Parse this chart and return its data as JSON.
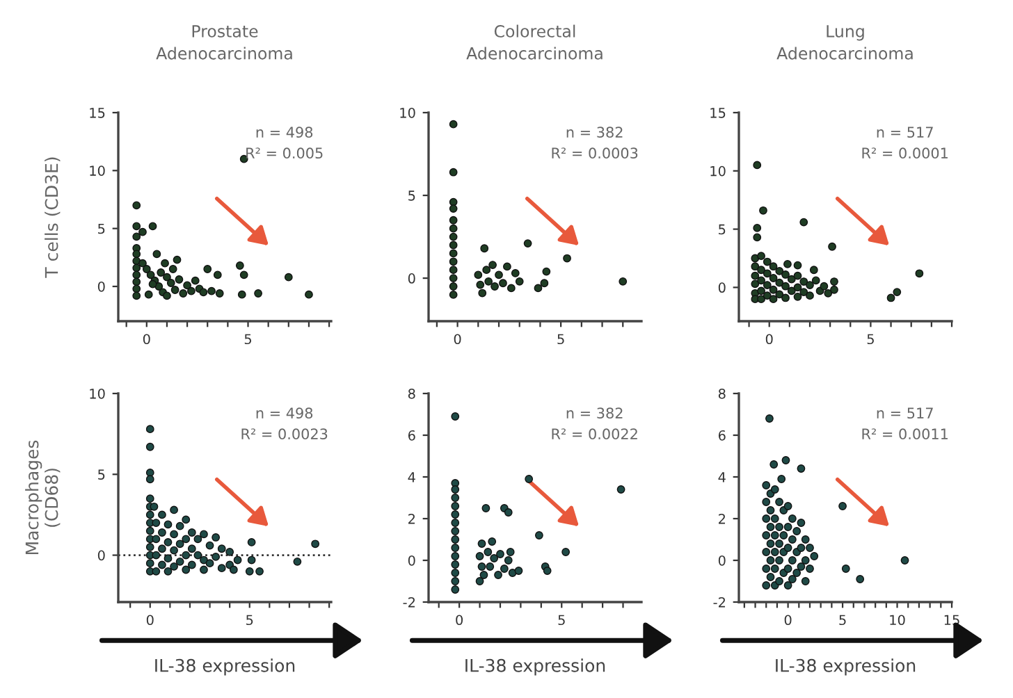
{
  "chart_data": [
    {
      "type": "scatter",
      "title": "Prostate\nAdenocarcinoma",
      "ylabel": "T cells (CD3E)",
      "color": "#1f3d24",
      "marker": "circle",
      "grid": false,
      "x": [
        -0.5,
        -0.5,
        -0.5,
        -0.5,
        -0.5,
        -0.5,
        -0.5,
        -0.5,
        -0.5,
        -0.5,
        -0.5,
        -0.2,
        0.3,
        0.5,
        1.5,
        -0.2,
        0,
        0.2,
        0.4,
        0.6,
        0.8,
        0.1,
        0.3,
        0.7,
        1.0,
        1.2,
        1.4,
        1.6,
        1.8,
        2.0,
        2.2,
        2.4,
        2.6,
        2.8,
        3.0,
        3.2,
        3.5,
        3.6,
        1.0,
        1.3,
        0.9,
        4.6,
        4.8,
        4.7,
        5.5,
        7.0,
        8.0,
        4.8
      ],
      "values": [
        7.0,
        5.2,
        4.3,
        3.3,
        2.8,
        2.2,
        1.6,
        1.0,
        0.4,
        -0.2,
        -0.8,
        4.7,
        5.2,
        2.8,
        2.3,
        2.0,
        1.5,
        1.0,
        0.5,
        0,
        -0.5,
        -0.7,
        0.2,
        1.2,
        0.8,
        0.3,
        -0.3,
        0.6,
        -0.6,
        0.1,
        -0.4,
        0.5,
        -0.2,
        -0.5,
        1.5,
        -0.4,
        1.0,
        -0.6,
        -0.8,
        1.5,
        2.0,
        1.8,
        1.0,
        -0.7,
        -0.6,
        0.8,
        -0.7,
        11.0
      ],
      "xlim": [
        -1.4,
        9.1
      ],
      "ylim": [
        -3,
        15
      ],
      "xticks": [
        {
          "value": -1,
          "label": null
        },
        0,
        {
          "value": 1,
          "label": null
        },
        {
          "value": 2,
          "label": null
        },
        {
          "value": 3,
          "label": null
        },
        {
          "value": 4,
          "label": null
        },
        5,
        {
          "value": 6,
          "label": null
        },
        {
          "value": 7,
          "label": null
        },
        {
          "value": 8,
          "label": null
        },
        {
          "value": 9,
          "label": null
        }
      ],
      "yticks": [
        0,
        5,
        10,
        15
      ],
      "annotations": [
        "n = 498",
        "R² = 0.005"
      ]
    },
    {
      "type": "scatter",
      "title": "Colorectal\nAdenocarcinoma",
      "color": "#1f3d24",
      "marker": "circle",
      "grid": false,
      "x": [
        -0.2,
        -0.2,
        -0.2,
        -0.2,
        -0.2,
        -0.2,
        -0.2,
        -0.2,
        -0.2,
        -0.2,
        -0.2,
        -0.2,
        -0.2,
        -0.2,
        1.3,
        1.0,
        1.1,
        1.2,
        1.4,
        1.5,
        1.7,
        1.8,
        2.0,
        2.2,
        2.4,
        2.6,
        2.8,
        3.0,
        3.4,
        3.9,
        4.2,
        4.3,
        5.3,
        8.0
      ],
      "values": [
        9.3,
        6.4,
        4.6,
        4.2,
        3.5,
        3.0,
        2.5,
        2.0,
        1.5,
        1.0,
        0.5,
        0,
        -0.5,
        -1.0,
        1.8,
        0.2,
        -0.4,
        -0.9,
        0.5,
        -0.2,
        0.8,
        -0.5,
        0.2,
        -0.3,
        0.7,
        -0.6,
        0.3,
        -0.2,
        2.1,
        -0.6,
        -0.3,
        0.4,
        1.2,
        -0.2
      ],
      "xlim": [
        -1.4,
        8.9
      ],
      "ylim": [
        -2.6,
        10
      ],
      "xticks": [
        {
          "value": -1,
          "label": null
        },
        0,
        {
          "value": 1,
          "label": null
        },
        {
          "value": 2,
          "label": null
        },
        {
          "value": 3,
          "label": null
        },
        {
          "value": 4,
          "label": null
        },
        5,
        {
          "value": 6,
          "label": null
        },
        {
          "value": 7,
          "label": null
        },
        {
          "value": 8,
          "label": null
        }
      ],
      "yticks": [
        0,
        5,
        10
      ],
      "annotations": [
        "n = 382",
        "R² = 0.0003"
      ]
    },
    {
      "type": "scatter",
      "title": "Lung\nAdenocarcinoma",
      "color": "#1f3d24",
      "marker": "circle",
      "grid": false,
      "x": [
        -0.7,
        -0.7,
        -0.7,
        -0.7,
        -0.7,
        -0.7,
        -0.4,
        -0.4,
        -0.4,
        -0.4,
        -0.4,
        -0.1,
        -0.1,
        -0.1,
        -0.1,
        0.2,
        0.2,
        0.2,
        0.2,
        0.5,
        0.5,
        0.5,
        0.8,
        0.8,
        0.8,
        1.1,
        1.1,
        1.4,
        1.4,
        1.4,
        1.7,
        1.7,
        2.0,
        2.0,
        2.3,
        2.5,
        2.7,
        2.9,
        -0.6,
        -0.3,
        -0.6,
        -0.6,
        1.7,
        3.1,
        2.2,
        0.9,
        1.4,
        3.2,
        3.2,
        6.0,
        6.3,
        7.4
      ],
      "values": [
        2.5,
        1.8,
        1.0,
        0.3,
        -0.5,
        -1.0,
        2.7,
        1.5,
        0.6,
        -0.3,
        -1.0,
        2.2,
        1.2,
        0.2,
        -0.7,
        1.8,
        0.8,
        -0.2,
        -1.0,
        1.4,
        0.4,
        -0.6,
        1.1,
        0.1,
        -0.9,
        0.7,
        -0.3,
        1.0,
        0.0,
        -0.8,
        0.5,
        -0.4,
        0.2,
        -0.7,
        0.6,
        -0.3,
        0.1,
        -0.5,
        10.5,
        6.6,
        5.1,
        4.3,
        5.6,
        3.5,
        1.5,
        2.0,
        1.9,
        0.5,
        -0.2,
        -0.9,
        -0.4,
        1.2
      ],
      "xlim": [
        -1.5,
        9
      ],
      "ylim": [
        -2.9,
        15
      ],
      "xticks": [
        {
          "value": -1,
          "label": null
        },
        0,
        {
          "value": 1,
          "label": null
        },
        {
          "value": 2,
          "label": null
        },
        {
          "value": 3,
          "label": null
        },
        {
          "value": 4,
          "label": null
        },
        5,
        {
          "value": 6,
          "label": null
        },
        {
          "value": 7,
          "label": null
        },
        {
          "value": 8,
          "label": null
        },
        {
          "value": 9,
          "label": null
        }
      ],
      "yticks": [
        0,
        5,
        10,
        15
      ],
      "annotations": [
        "n = 517",
        "R² = 0.0001"
      ]
    },
    {
      "type": "scatter",
      "ylabel": "Macrophages\n(CD68)",
      "xlabel": "IL-38 expression",
      "color": "#1f4a46",
      "marker": "circle",
      "grid": false,
      "x": [
        0,
        0,
        0,
        0,
        0,
        0,
        0,
        0,
        0,
        0,
        0,
        0,
        0,
        0,
        0.2,
        0.3,
        0.3,
        0.3,
        0.3,
        0.6,
        0.6,
        0.6,
        0.6,
        0.9,
        0.9,
        0.9,
        0.9,
        1.2,
        1.2,
        1.2,
        1.2,
        1.5,
        1.5,
        1.5,
        1.8,
        1.8,
        1.8,
        1.8,
        2.1,
        2.1,
        2.1,
        2.4,
        2.4,
        2.7,
        2.7,
        2.7,
        3.0,
        3.0,
        3.3,
        3.3,
        3.6,
        3.6,
        4.0,
        4.0,
        4.4,
        4.2,
        5.1,
        5.1,
        5.0,
        5.5,
        7.4,
        8.3
      ],
      "values": [
        7.8,
        6.7,
        5.1,
        4.7,
        3.5,
        3.0,
        2.5,
        2.0,
        1.5,
        1.0,
        0.5,
        0,
        -0.5,
        -1.0,
        3.0,
        2.0,
        1.0,
        0,
        -1.0,
        2.5,
        1.4,
        0.4,
        -0.6,
        1.9,
        0.8,
        -0.2,
        -1.0,
        2.8,
        1.3,
        0.3,
        -0.7,
        1.8,
        0.7,
        -0.4,
        2.2,
        1.0,
        0.0,
        -0.9,
        1.4,
        0.4,
        -0.6,
        1.0,
        0.0,
        1.3,
        -0.3,
        -0.9,
        0.6,
        -0.5,
        1.1,
        -0.1,
        0.4,
        -0.8,
        0.2,
        -0.6,
        -0.3,
        -0.9,
        0.8,
        -0.3,
        -1.0,
        -1.0,
        -0.4,
        0.7
      ],
      "xlim": [
        -1.6,
        9.1
      ],
      "ylim": [
        -2.9,
        10
      ],
      "xticks": [
        {
          "value": -1,
          "label": null
        },
        0,
        {
          "value": 1,
          "label": null
        },
        {
          "value": 2,
          "label": null
        },
        {
          "value": 3,
          "label": null
        },
        {
          "value": 4,
          "label": null
        },
        5,
        {
          "value": 6,
          "label": null
        },
        {
          "value": 7,
          "label": null
        },
        {
          "value": 8,
          "label": null
        },
        {
          "value": 9,
          "label": null
        }
      ],
      "yticks": [
        0,
        5,
        10
      ],
      "ref_lines": [
        {
          "axis": "y",
          "value": 0,
          "color": "#333333",
          "line_style": "dotted"
        }
      ],
      "annotations": [
        "n = 498",
        "R² = 0.0023"
      ]
    },
    {
      "type": "scatter",
      "xlabel": "IL-38 expression",
      "color": "#1f4a46",
      "marker": "circle",
      "grid": false,
      "x": [
        -0.2,
        -0.2,
        -0.2,
        -0.2,
        -0.2,
        -0.2,
        -0.2,
        -0.2,
        -0.2,
        -0.2,
        -0.2,
        -0.2,
        -0.2,
        -0.2,
        -0.2,
        1.3,
        2.2,
        2.4,
        3.4,
        3.9,
        4.2,
        4.3,
        5.2,
        7.9,
        1.1,
        1.0,
        1.1,
        1.2,
        1.0,
        1.4,
        1.5,
        1.7,
        1.9,
        2.0,
        2.2,
        2.4,
        2.5,
        2.6,
        2.9,
        1.6
      ],
      "values": [
        6.9,
        3.7,
        3.4,
        3.0,
        2.6,
        2.2,
        1.8,
        1.4,
        1.0,
        0.6,
        0.2,
        -0.2,
        -0.6,
        -1.0,
        -1.4,
        2.5,
        2.5,
        2.3,
        3.9,
        1.2,
        -0.3,
        -0.5,
        0.4,
        3.4,
        0.8,
        0.2,
        -0.3,
        -0.7,
        -1.0,
        0.4,
        -0.3,
        0.1,
        -0.7,
        0.3,
        -0.4,
        0.0,
        0.4,
        -0.6,
        -0.5,
        0.9
      ],
      "xlim": [
        -1.5,
        8.9
      ],
      "ylim": [
        -2,
        8
      ],
      "xticks": [
        {
          "value": -1,
          "label": null
        },
        0,
        {
          "value": 1,
          "label": null
        },
        {
          "value": 2,
          "label": null
        },
        {
          "value": 3,
          "label": null
        },
        {
          "value": 4,
          "label": null
        },
        5,
        {
          "value": 6,
          "label": null
        },
        {
          "value": 7,
          "label": null
        },
        {
          "value": 8,
          "label": null
        }
      ],
      "yticks": [
        -2,
        0,
        2,
        4,
        6,
        8
      ],
      "annotations": [
        "n = 382",
        "R² = 0.0022"
      ]
    },
    {
      "type": "scatter",
      "xlabel": "IL-38 expression",
      "color": "#1f4a46",
      "marker": "circle",
      "grid": false,
      "x": [
        -2,
        -2,
        -2,
        -2,
        -2,
        -2,
        -2,
        -1.6,
        -1.6,
        -1.6,
        -1.6,
        -1.6,
        -1.6,
        -1.2,
        -1.2,
        -1.2,
        -1.2,
        -1.2,
        -1.2,
        -0.8,
        -0.8,
        -0.8,
        -0.8,
        -0.8,
        -0.4,
        -0.4,
        -0.4,
        -0.4,
        0,
        0,
        0,
        0,
        0,
        0.4,
        0.4,
        0.4,
        0.4,
        0.8,
        0.8,
        0.8,
        1.2,
        1.2,
        1.2,
        1.6,
        1.6,
        1.6,
        2.0,
        2.0,
        2.4,
        -1.7,
        -1.3,
        -0.2,
        -0.6,
        1.2,
        5.0,
        5.3,
        6.6,
        10.7
      ],
      "values": [
        3.6,
        2.8,
        2.0,
        1.2,
        0.4,
        -0.4,
        -1.2,
        3.2,
        2.4,
        1.6,
        0.8,
        0,
        -0.8,
        3.4,
        2.0,
        1.2,
        0.4,
        -0.4,
        -1.2,
        2.8,
        1.6,
        0.8,
        0,
        -1.0,
        2.4,
        1.2,
        0.4,
        -0.6,
        2.6,
        1.6,
        0.6,
        -0.4,
        -1.2,
        2.0,
        1.0,
        0,
        -0.9,
        1.4,
        0.4,
        -0.6,
        1.8,
        0.6,
        -0.3,
        1.0,
        0,
        -1.0,
        0.6,
        -0.4,
        0.2,
        6.8,
        4.6,
        4.8,
        3.9,
        4.4,
        2.6,
        -0.4,
        -0.9,
        0.0
      ],
      "xlim": [
        -4.5,
        15
      ],
      "ylim": [
        -2,
        8
      ],
      "xticks": [
        {
          "value": -4,
          "label": null
        },
        {
          "value": -3,
          "label": null
        },
        {
          "value": -2,
          "label": null
        },
        {
          "value": -1,
          "label": null
        },
        0,
        {
          "value": 1,
          "label": null
        },
        {
          "value": 2,
          "label": null
        },
        {
          "value": 3,
          "label": null
        },
        {
          "value": 4,
          "label": null
        },
        5,
        {
          "value": 6,
          "label": null
        },
        {
          "value": 7,
          "label": null
        },
        {
          "value": 8,
          "label": null
        },
        {
          "value": 9,
          "label": null
        },
        10,
        {
          "value": 11,
          "label": null
        },
        {
          "value": 12,
          "label": null
        },
        {
          "value": 13,
          "label": null
        },
        {
          "value": 14,
          "label": null
        },
        15
      ],
      "yticks": [
        -2,
        0,
        2,
        4,
        6,
        8
      ],
      "annotations": [
        "n = 517",
        "R² = 0.0011"
      ]
    }
  ]
}
